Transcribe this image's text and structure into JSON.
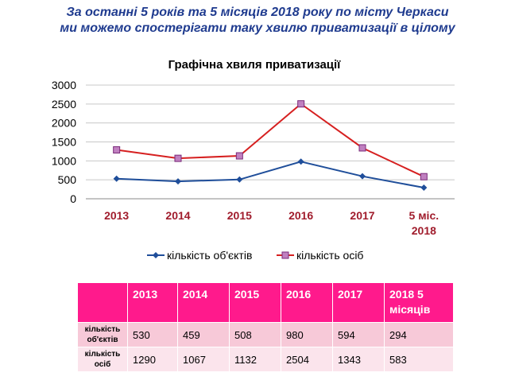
{
  "headline": {
    "line1": "За останні 5 років та 5 місяців 2018 року по місту Черкаси",
    "line2": "ми можемо спостерігати таку хвилю приватизації в цілому"
  },
  "chart_data": {
    "type": "line",
    "title": "Графічна хвиля приватизації",
    "categories": [
      "2013",
      "2014",
      "2015",
      "2016",
      "2017",
      "5 міс. 2018"
    ],
    "yticks": [
      "0",
      "500",
      "1000",
      "1500",
      "2000",
      "2500",
      "3000"
    ],
    "ylim": [
      0,
      3000
    ],
    "grid": true,
    "legend_position": "bottom",
    "series": [
      {
        "name": "кількість об'єктів",
        "values": [
          530,
          459,
          508,
          980,
          594,
          294
        ],
        "color": "#1f4e9a",
        "marker": "diamond"
      },
      {
        "name": "кількість осіб",
        "values": [
          1290,
          1067,
          1132,
          2504,
          1343,
          583
        ],
        "color": "#d62020",
        "marker": "square"
      }
    ],
    "category_label_color": "#a01c2c"
  },
  "table": {
    "header": [
      "",
      "2013",
      "2014",
      "2015",
      "2016",
      "2017",
      "2018 5 місяців"
    ],
    "rows": [
      {
        "label": "кількість об'єктів",
        "values": [
          "530",
          "459",
          "508",
          "980",
          "594",
          "294"
        ]
      },
      {
        "label": "кількість осіб",
        "values": [
          "1290",
          "1067",
          "1132",
          "2504",
          "1343",
          "583"
        ]
      }
    ]
  }
}
